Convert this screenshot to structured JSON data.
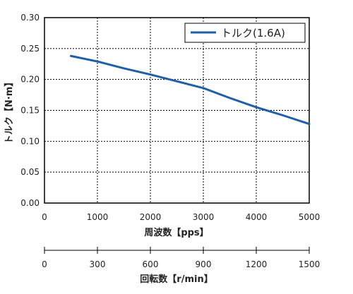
{
  "chart_data": {
    "type": "line",
    "title": "",
    "xlabel": "周波数【pps】",
    "ylabel": "トルク【N·m】",
    "x2label": "回転数【r/min】",
    "xlim": [
      0,
      5000
    ],
    "ylim": [
      0,
      0.3
    ],
    "x_ticks": [
      "0",
      "1000",
      "2000",
      "3000",
      "4000",
      "5000"
    ],
    "y_ticks": [
      "0.00",
      "0.05",
      "0.10",
      "0.15",
      "0.20",
      "0.25",
      "0.30"
    ],
    "x2_ticks": [
      "0",
      "300",
      "600",
      "900",
      "1200",
      "1500"
    ],
    "grid": true,
    "legend_position": "top-right",
    "series": [
      {
        "name": "トルク(1.6A)",
        "color": "#1f5fa8",
        "x": [
          500,
          1000,
          1500,
          2000,
          2500,
          3000,
          3500,
          4000,
          4500,
          5000
        ],
        "y": [
          0.238,
          0.229,
          0.218,
          0.208,
          0.197,
          0.186,
          0.17,
          0.155,
          0.142,
          0.128
        ]
      }
    ]
  }
}
